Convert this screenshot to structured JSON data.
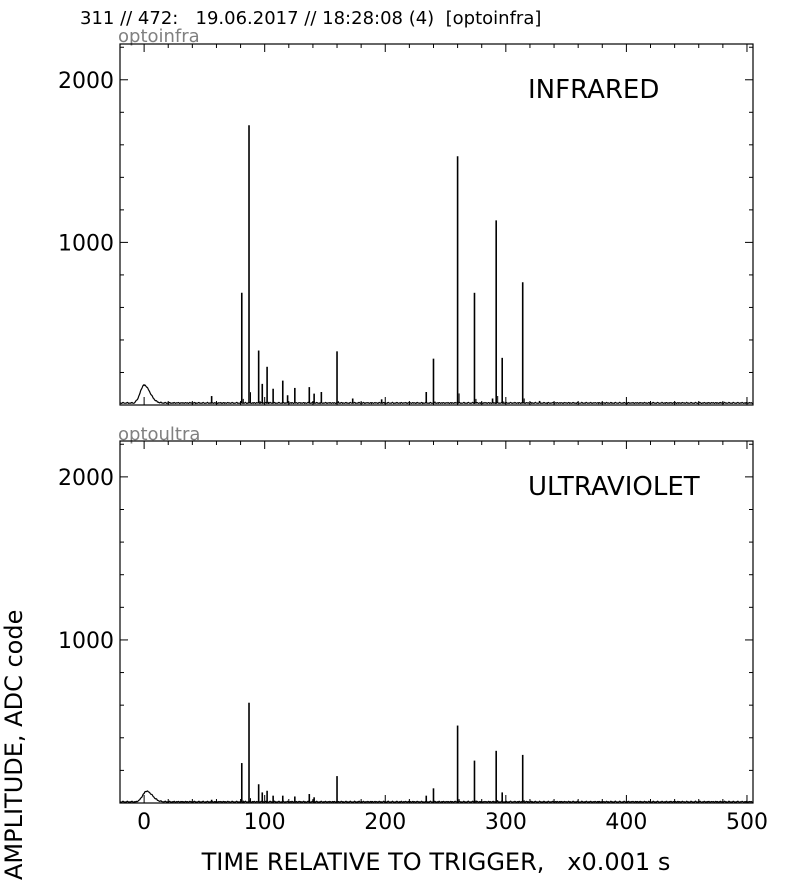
{
  "header": {
    "title": "311 // 472:   19.06.2017 // 18:28:08 (4)  [optoinfra]"
  },
  "chart_data": [
    {
      "type": "line",
      "name": "optoinfra",
      "annotation": "INFRARED",
      "xlim": [
        -20,
        505
      ],
      "ylim": [
        0,
        2220
      ],
      "yticks": [
        1000,
        2000
      ],
      "xticks": [
        0,
        100,
        200,
        300,
        400,
        500
      ],
      "baseline": 10,
      "bumps": [
        {
          "x": 0,
          "value": 110
        }
      ],
      "peaks": [
        {
          "x": 56,
          "value": 55
        },
        {
          "x": 81,
          "value": 690
        },
        {
          "x": 87,
          "value": 1720
        },
        {
          "x": 95,
          "value": 335
        },
        {
          "x": 98,
          "value": 130
        },
        {
          "x": 102,
          "value": 235
        },
        {
          "x": 107,
          "value": 100
        },
        {
          "x": 115,
          "value": 150
        },
        {
          "x": 119,
          "value": 60
        },
        {
          "x": 125,
          "value": 105
        },
        {
          "x": 137,
          "value": 110
        },
        {
          "x": 141,
          "value": 70
        },
        {
          "x": 147,
          "value": 80
        },
        {
          "x": 160,
          "value": 330
        },
        {
          "x": 173,
          "value": 40
        },
        {
          "x": 197,
          "value": 35
        },
        {
          "x": 234,
          "value": 80
        },
        {
          "x": 240,
          "value": 285
        },
        {
          "x": 260,
          "value": 1530
        },
        {
          "x": 274,
          "value": 690
        },
        {
          "x": 289,
          "value": 40
        },
        {
          "x": 292,
          "value": 1135
        },
        {
          "x": 297,
          "value": 290
        },
        {
          "x": 314,
          "value": 755
        },
        {
          "x": 328,
          "value": 25
        }
      ]
    },
    {
      "type": "line",
      "name": "optoultra",
      "annotation": "ULTRAVIOLET",
      "xlim": [
        -20,
        505
      ],
      "ylim": [
        0,
        2220
      ],
      "yticks": [
        1000,
        2000
      ],
      "xticks": [
        0,
        100,
        200,
        300,
        400,
        500
      ],
      "baseline": 5,
      "bumps": [
        {
          "x": 2,
          "value": 65
        }
      ],
      "peaks": [
        {
          "x": 56,
          "value": 20
        },
        {
          "x": 81,
          "value": 245
        },
        {
          "x": 87,
          "value": 615
        },
        {
          "x": 95,
          "value": 115
        },
        {
          "x": 98,
          "value": 65
        },
        {
          "x": 102,
          "value": 75
        },
        {
          "x": 107,
          "value": 45
        },
        {
          "x": 115,
          "value": 45
        },
        {
          "x": 125,
          "value": 40
        },
        {
          "x": 137,
          "value": 55
        },
        {
          "x": 141,
          "value": 35
        },
        {
          "x": 160,
          "value": 165
        },
        {
          "x": 234,
          "value": 45
        },
        {
          "x": 240,
          "value": 90
        },
        {
          "x": 260,
          "value": 475
        },
        {
          "x": 274,
          "value": 260
        },
        {
          "x": 292,
          "value": 320
        },
        {
          "x": 297,
          "value": 65
        },
        {
          "x": 314,
          "value": 295
        }
      ]
    }
  ],
  "axes": {
    "xlabel": "TIME RELATIVE TO TRIGGER,   x0.001 s",
    "ylabel": "AMPLITUDE,  ADC code"
  }
}
